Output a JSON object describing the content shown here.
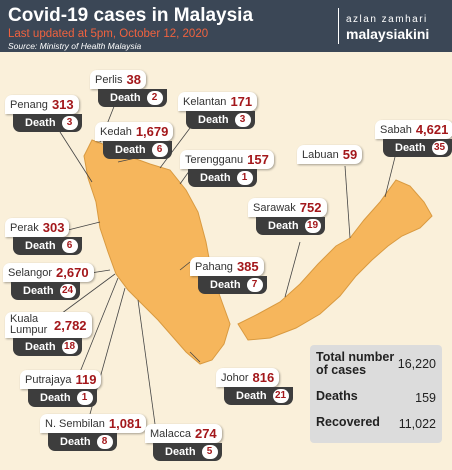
{
  "header": {
    "title": "Covid-19 cases in Malaysia",
    "updated": "Last updated at 5pm, October 12, 2020",
    "source": "Source: Ministry of Health Malaysia",
    "brand_top": "azlan zamhari",
    "brand": "malaysiakini"
  },
  "death_label": "Death",
  "states": [
    {
      "name": "Perlis",
      "cases": "38",
      "deaths": "2"
    },
    {
      "name": "Penang",
      "cases": "313",
      "deaths": "3"
    },
    {
      "name": "Kelantan",
      "cases": "171",
      "deaths": "3"
    },
    {
      "name": "Kedah",
      "cases": "1,679",
      "deaths": "6"
    },
    {
      "name": "Terengganu",
      "cases": "157",
      "deaths": "1"
    },
    {
      "name": "Labuan",
      "cases": "59"
    },
    {
      "name": "Sabah",
      "cases": "4,621",
      "deaths": "35"
    },
    {
      "name": "Sarawak",
      "cases": "752",
      "deaths": "19"
    },
    {
      "name": "Perak",
      "cases": "303",
      "deaths": "6"
    },
    {
      "name": "Pahang",
      "cases": "385",
      "deaths": "7"
    },
    {
      "name": "Selangor",
      "cases": "2,670",
      "deaths": "24"
    },
    {
      "name": "Kuala Lumpur",
      "cases": "2,782",
      "deaths": "18"
    },
    {
      "name": "Putrajaya",
      "cases": "119",
      "deaths": "1"
    },
    {
      "name": "Johor",
      "cases": "816",
      "deaths": "21"
    },
    {
      "name": "N. Sembilan",
      "cases": "1,081",
      "deaths": "8"
    },
    {
      "name": "Malacca",
      "cases": "274",
      "deaths": "5"
    }
  ],
  "summary": [
    {
      "label": "Total number of cases",
      "value": "16,220"
    },
    {
      "label": "Deaths",
      "value": "159"
    },
    {
      "label": "Recovered",
      "value": "11,022"
    }
  ]
}
